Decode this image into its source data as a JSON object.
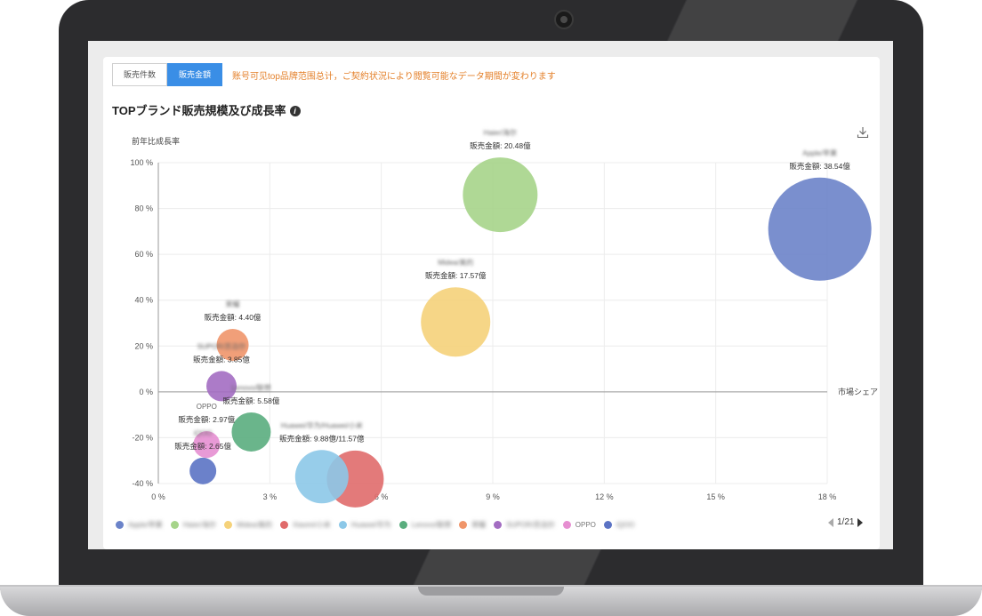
{
  "tabs": [
    {
      "label": "販売件数",
      "active": false
    },
    {
      "label": "販売金額",
      "active": true
    }
  ],
  "notice": "账号可见top品牌范围总计，ご契約状況により閲覧可能なデータ期間が変わります",
  "chart_title": "TOPブランド販売規模及び成長率",
  "info_icon": "i",
  "download_icon": "download-icon",
  "pager": "1/21",
  "chart_data": {
    "type": "scatter",
    "variant": "bubble",
    "title": "TOPブランド販売規模及び成長率",
    "xlabel": "市場シェア",
    "ylabel": "前年比成長率",
    "xlim": [
      0,
      18
    ],
    "ylim": [
      -40,
      100
    ],
    "x_ticks": [
      0,
      3,
      6,
      9,
      12,
      15,
      18
    ],
    "y_ticks": [
      100,
      80,
      60,
      40,
      20,
      0,
      -20,
      -40
    ],
    "x_tick_labels": [
      "0 %",
      "3 %",
      "6 %",
      "9 %",
      "12 %",
      "15 %",
      "18 %"
    ],
    "y_tick_labels": [
      "100 %",
      "80 %",
      "60 %",
      "40 %",
      "20 %",
      "0 %",
      "-20 %",
      "-40 %"
    ],
    "grid": true,
    "legend_position": "bottom",
    "series": [
      {
        "name": "Apple/苹果",
        "x": 17.8,
        "y": 71,
        "size": 58,
        "color": "#6b83c9",
        "label_name": "Apple/苹果",
        "label_value": "販売金額: 38.54億",
        "blur": true
      },
      {
        "name": "Haier/海尔",
        "x": 9.2,
        "y": 86,
        "size": 42,
        "color": "#a6d48a",
        "label_name": "Haier/海尔",
        "label_value": "販売金額: 20.48億",
        "blur": true
      },
      {
        "name": "Midea/美的",
        "x": 8.0,
        "y": 30.5,
        "size": 39,
        "color": "#f5d27a",
        "label_name": "Midea/美的",
        "label_value": "販売金額: 17.57億",
        "blur": true
      },
      {
        "name": "Xiaomi/小米",
        "x": 5.3,
        "y": -38,
        "size": 32,
        "color": "#e06b6b",
        "label_name": "",
        "label_value": "",
        "blur": true
      },
      {
        "name": "Huawei/华为",
        "x": 4.4,
        "y": -37,
        "size": 30,
        "color": "#8cc8e8",
        "label_name": "Huawei/华为/Huawei/小米",
        "label_value": "販売金額: 9.88億/11.57億",
        "blur": true
      },
      {
        "name": "Lenovo/联想",
        "x": 2.5,
        "y": -17.5,
        "size": 22,
        "color": "#5aad7e",
        "label_name": "Lenovo/联想",
        "label_value": "販売金額: 5.58億",
        "blur": true
      },
      {
        "name": "荣耀",
        "x": 2.0,
        "y": 20.5,
        "size": 18,
        "color": "#f0956a",
        "label_name": "荣耀",
        "label_value": "販売金額: 4.40億",
        "blur": true
      },
      {
        "name": "SUPOR/苏泊尔",
        "x": 1.7,
        "y": 2.5,
        "size": 17,
        "color": "#a36dc2",
        "label_name": "SUPOR/苏泊尔",
        "label_value": "販売金額: 3.85億",
        "blur": true
      },
      {
        "name": "OPPO",
        "x": 1.3,
        "y": -23,
        "size": 15,
        "color": "#e68fd1",
        "label_name": "OPPO",
        "label_value": "販売金額: 2.97億",
        "blur": false
      },
      {
        "name": "iQOO",
        "x": 1.2,
        "y": -34.5,
        "size": 15,
        "color": "#5b73c4",
        "label_name": "iQOO",
        "label_value": "販売金額: 2.65億",
        "blur": true
      }
    ]
  }
}
